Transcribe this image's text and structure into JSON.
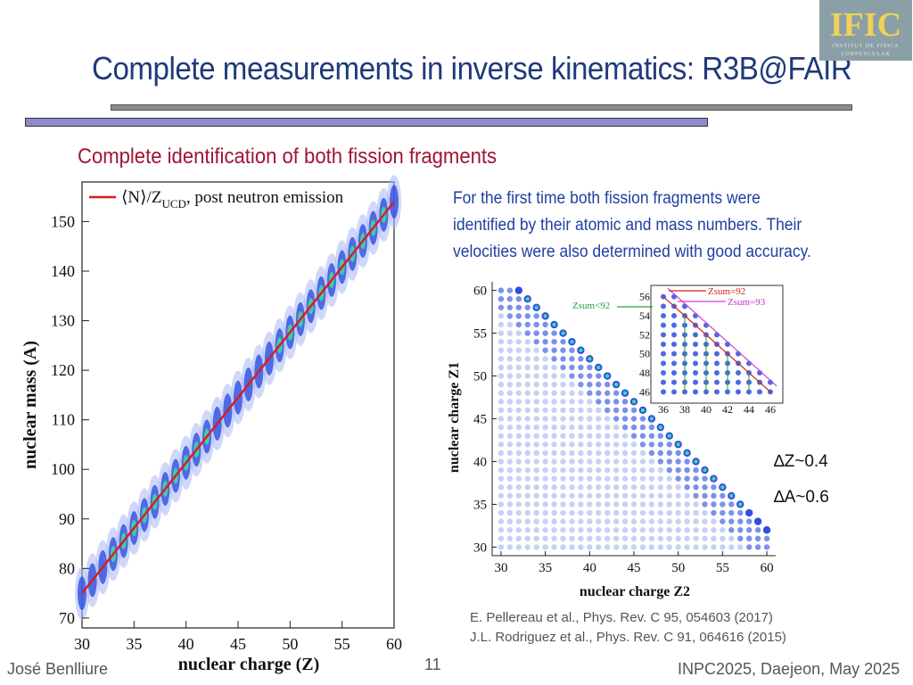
{
  "slide": {
    "title": "Complete measurements in inverse kinematics: R3B@FAIR",
    "subtitle": "Complete identification of both fission fragments",
    "description": [
      "For the first time both fission fragments were",
      "identified by their atomic and mass numbers. Their",
      "velocities were also determined with good accuracy."
    ],
    "resolution": [
      "∆Z~0.4",
      "∆A~0.6"
    ],
    "references": [
      "E. Pellereau et al., Phys. Rev. C 95, 054603 (2017)",
      "J.L. Rodriguez et al., Phys. Rev. C 91, 064616 (2015)"
    ],
    "logo": {
      "text": "IFIC",
      "subtext_1": "INSTITUT DE FÍSICA",
      "subtext_2": "CORPUSCULAR"
    },
    "footer": {
      "author": "José Benlliure",
      "page": "11",
      "event": "INPC2025, Daejeon, May 2025"
    },
    "colors": {
      "title": "#1f3a7a",
      "subtitle": "#a01535",
      "description": "#1f3fa0",
      "fit_line": "#d42020"
    }
  },
  "chart_data": [
    {
      "type": "scatter",
      "xlabel": "nuclear charge (Z)",
      "ylabel": "nuclear mass (A)",
      "xlim": [
        30,
        60
      ],
      "ylim": [
        68,
        158
      ],
      "xticks": [
        30,
        35,
        40,
        45,
        50,
        55,
        60
      ],
      "yticks": [
        70,
        80,
        90,
        100,
        110,
        120,
        130,
        140,
        150
      ],
      "legend": {
        "label": "⟨N⟩/Z",
        "label_sub": "UCD",
        "label_tail": ", post neutron emission",
        "position": "top-left"
      },
      "fit_line": {
        "x": [
          30,
          60
        ],
        "y": [
          75,
          154
        ]
      }
    },
    {
      "type": "scatter",
      "xlabel": "nuclear charge Z2",
      "ylabel": "nuclear charge Z1",
      "xlim": [
        29,
        61
      ],
      "ylim": [
        29,
        61
      ],
      "xticks": [
        30,
        35,
        40,
        45,
        50,
        55,
        60
      ],
      "yticks": [
        30,
        35,
        40,
        45,
        50,
        55,
        60
      ],
      "inset": {
        "xticks": [
          36,
          38,
          40,
          42,
          44,
          46
        ],
        "yticks": [
          46,
          48,
          50,
          52,
          54,
          56
        ],
        "labels": {
          "zsum92": "Zsum=92",
          "zsum93": "Zsum=93",
          "zsum_lt92": "Zsum<92"
        }
      }
    }
  ]
}
